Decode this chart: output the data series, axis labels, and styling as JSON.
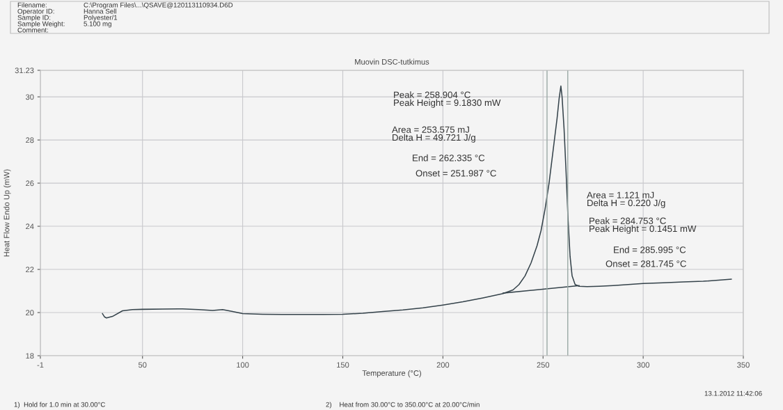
{
  "chart_data": {
    "type": "line",
    "title": "Muovin DSC-tutkimus",
    "xlabel": "Temperature (°C)",
    "ylabel": "Heat Flow Endo Up (mW)",
    "xlim": [
      -1,
      350
    ],
    "xticks": [
      -1,
      50,
      100,
      150,
      200,
      250,
      300,
      350
    ],
    "ylim": [
      18,
      31.23
    ],
    "yticks": [
      18,
      20,
      22,
      24,
      26,
      28,
      30,
      31.23
    ],
    "grid": true,
    "line_style": "solid",
    "marker": "none",
    "series": [
      {
        "color": "#34424a",
        "x": [
          30,
          31,
          32,
          35,
          40,
          45,
          50,
          60,
          70,
          78,
          85,
          90,
          95,
          100,
          110,
          120,
          130,
          140,
          150,
          160,
          170,
          180,
          190,
          200,
          210,
          220,
          230,
          235,
          238,
          241,
          244,
          247,
          249,
          251,
          253,
          255,
          257,
          258,
          258.9,
          259.5,
          260.5,
          261.5,
          262.5,
          263.5,
          264.5,
          266,
          268,
          272,
          278,
          285,
          290,
          300,
          310,
          320,
          330,
          344
        ],
        "values": [
          19.95,
          19.8,
          19.75,
          19.82,
          20.08,
          20.14,
          20.15,
          20.16,
          20.17,
          20.14,
          20.1,
          20.14,
          20.05,
          19.95,
          19.92,
          19.91,
          19.91,
          19.91,
          19.92,
          19.97,
          20.05,
          20.12,
          20.22,
          20.35,
          20.5,
          20.68,
          20.88,
          21.05,
          21.3,
          21.7,
          22.3,
          23.1,
          23.8,
          24.8,
          26.0,
          27.5,
          29.0,
          29.9,
          30.5,
          30.0,
          28.5,
          26.5,
          24.3,
          22.6,
          21.7,
          21.3,
          21.22,
          21.2,
          21.22,
          21.25,
          21.28,
          21.35,
          21.38,
          21.42,
          21.45,
          21.55
        ]
      },
      {
        "color": "#34424a",
        "x": [
          230,
          268
        ],
        "values": [
          20.9,
          21.25
        ]
      }
    ],
    "ref_lines": [
      {
        "axis": "x",
        "value": 251.987,
        "color": "#9aa8a4"
      },
      {
        "axis": "x",
        "value": 262.335,
        "color": "#9aa8a4"
      }
    ],
    "annotations": [
      "Filename:",
      "C:\\Program Files\\...\\QSAVE@120113110934.D6D",
      "Operator ID:",
      "Hanna Sell",
      "Sample ID:",
      "Polyester/1",
      "Sample Weight:",
      "5.100 mg",
      "Comment:",
      "Peak = 258.904 °C\nPeak Height = 9.1830 mW",
      "Area = 253.575 mJ\nDelta H = 49.721 J/g",
      "End = 262.335 °C",
      "Onset = 251.987 °C",
      "Area = 1.121 mJ\nDelta H = 0.220 J/g",
      "Peak = 284.753 °C\nPeak Height = 0.1451 mW",
      "End = 285.995 °C",
      "Onset = 281.745 °C",
      "13.1.2012 11:42:06",
      "1)  Hold for 1.0 min at 30.00°C",
      "2)    Heat from 30.00°C to 350.00°C at 20.00°C/min"
    ]
  }
}
